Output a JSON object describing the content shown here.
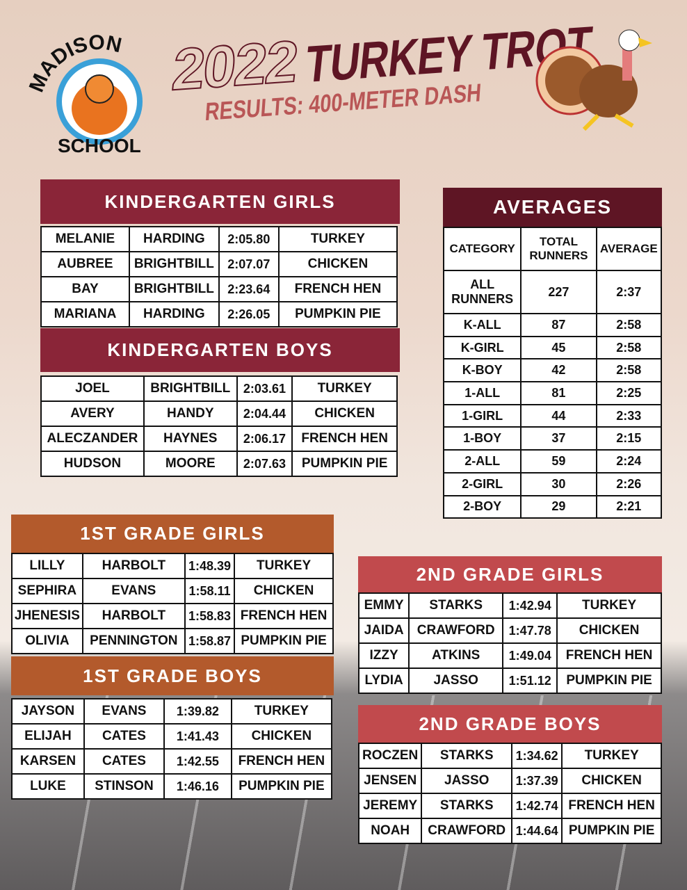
{
  "header": {
    "school_logo_text_top": "MADISON",
    "school_logo_text_bottom": "SCHOOL",
    "year": "2022",
    "title": "TURKEY TROT",
    "subtitle": "RESULTS: 400-METER DASH"
  },
  "colors": {
    "kinder": "#8a2538",
    "averages": "#5e1524",
    "first": "#b35a2c",
    "second": "#c14a4d"
  },
  "sections": [
    {
      "id": "kg-girls",
      "title": "KINDERGARTEN GIRLS",
      "rows": [
        [
          "MELANIE",
          "HARDING",
          "2:05.80",
          "TURKEY"
        ],
        [
          "AUBREE",
          "BRIGHTBILL",
          "2:07.07",
          "CHICKEN"
        ],
        [
          "BAY",
          "BRIGHTBILL",
          "2:23.64",
          "FRENCH HEN"
        ],
        [
          "MARIANA",
          "HARDING",
          "2:26.05",
          "PUMPKIN PIE"
        ]
      ]
    },
    {
      "id": "kg-boys",
      "title": "KINDERGARTEN BOYS",
      "rows": [
        [
          "JOEL",
          "BRIGHTBILL",
          "2:03.61",
          "TURKEY"
        ],
        [
          "AVERY",
          "HANDY",
          "2:04.44",
          "CHICKEN"
        ],
        [
          "ALECZANDER",
          "HAYNES",
          "2:06.17",
          "FRENCH HEN"
        ],
        [
          "HUDSON",
          "MOORE",
          "2:07.63",
          "PUMPKIN PIE"
        ]
      ]
    },
    {
      "id": "1st-girls",
      "title": "1ST GRADE GIRLS",
      "rows": [
        [
          "LILLY",
          "HARBOLT",
          "1:48.39",
          "TURKEY"
        ],
        [
          "SEPHIRA",
          "EVANS",
          "1:58.11",
          "CHICKEN"
        ],
        [
          "JHENESIS",
          "HARBOLT",
          "1:58.83",
          "FRENCH HEN"
        ],
        [
          "OLIVIA",
          "PENNINGTON",
          "1:58.87",
          "PUMPKIN PIE"
        ]
      ]
    },
    {
      "id": "1st-boys",
      "title": "1ST GRADE BOYS",
      "rows": [
        [
          "JAYSON",
          "EVANS",
          "1:39.82",
          "TURKEY"
        ],
        [
          "ELIJAH",
          "CATES",
          "1:41.43",
          "CHICKEN"
        ],
        [
          "KARSEN",
          "CATES",
          "1:42.55",
          "FRENCH HEN"
        ],
        [
          "LUKE",
          "STINSON",
          "1:46.16",
          "PUMPKIN PIE"
        ]
      ]
    },
    {
      "id": "2nd-girls",
      "title": "2ND GRADE GIRLS",
      "rows": [
        [
          "EMMY",
          "STARKS",
          "1:42.94",
          "TURKEY"
        ],
        [
          "JAIDA",
          "CRAWFORD",
          "1:47.78",
          "CHICKEN"
        ],
        [
          "IZZY",
          "ATKINS",
          "1:49.04",
          "FRENCH HEN"
        ],
        [
          "LYDIA",
          "JASSO",
          "1:51.12",
          "PUMPKIN PIE"
        ]
      ]
    },
    {
      "id": "2nd-boys",
      "title": "2ND GRADE BOYS",
      "rows": [
        [
          "ROCZEN",
          "STARKS",
          "1:34.62",
          "TURKEY"
        ],
        [
          "JENSEN",
          "JASSO",
          "1:37.39",
          "CHICKEN"
        ],
        [
          "JEREMY",
          "STARKS",
          "1:42.74",
          "FRENCH HEN"
        ],
        [
          "NOAH",
          "CRAWFORD",
          "1:44.64",
          "PUMPKIN PIE"
        ]
      ]
    }
  ],
  "averages": {
    "title": "AVERAGES",
    "columns": [
      "CATEGORY",
      "TOTAL RUNNERS",
      "AVERAGE"
    ],
    "rows": [
      [
        "ALL RUNNERS",
        "227",
        "2:37"
      ],
      [
        "K-ALL",
        "87",
        "2:58"
      ],
      [
        "K-GIRL",
        "45",
        "2:58"
      ],
      [
        "K-BOY",
        "42",
        "2:58"
      ],
      [
        "1-ALL",
        "81",
        "2:25"
      ],
      [
        "1-GIRL",
        "44",
        "2:33"
      ],
      [
        "1-BOY",
        "37",
        "2:15"
      ],
      [
        "2-ALL",
        "59",
        "2:24"
      ],
      [
        "2-GIRL",
        "30",
        "2:26"
      ],
      [
        "2-BOY",
        "29",
        "2:21"
      ]
    ]
  }
}
